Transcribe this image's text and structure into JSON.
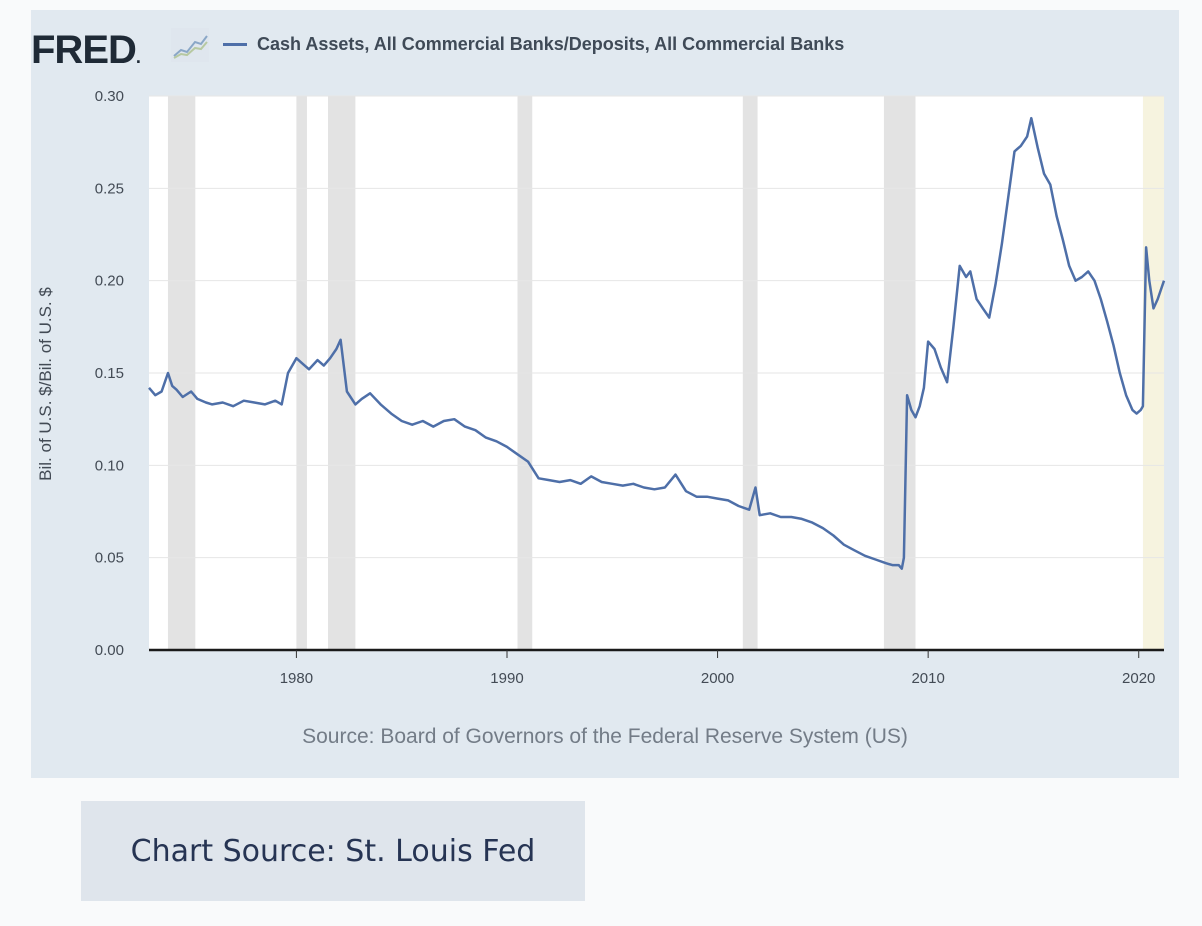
{
  "header": {
    "logo_text": "FRED",
    "logo_suffix": ".",
    "legend_label": "Cash Assets, All Commercial Banks/Deposits, All Commercial Banks"
  },
  "source_note": "Source: Board of Governors of the Federal Reserve System (US)",
  "caption": "Chart Source: St. Louis Fed",
  "colors": {
    "line": "#4e6fa8",
    "recession": "#e3e3e3",
    "highlight": "#f6f3df",
    "card": "#e1e9f0",
    "caption_bg": "#dfe5ec"
  },
  "chart_data": {
    "type": "line",
    "title": "",
    "xlabel": "",
    "ylabel": "Bil. of U.S. $/Bil. of U.S. $",
    "xlim": [
      1973.0,
      2021.2
    ],
    "ylim": [
      0.0,
      0.3
    ],
    "x_ticks": [
      1980,
      1990,
      2000,
      2010,
      2020
    ],
    "y_ticks": [
      "0.00",
      "0.05",
      "0.10",
      "0.15",
      "0.20",
      "0.25",
      "0.30"
    ],
    "grid": true,
    "legend_position": "top-left",
    "recession_bands": [
      [
        1973.9,
        1975.2
      ],
      [
        1980.0,
        1980.5
      ],
      [
        1981.5,
        1982.8
      ],
      [
        1990.5,
        1991.2
      ],
      [
        2001.2,
        2001.9
      ],
      [
        2007.9,
        2009.4
      ]
    ],
    "highlight_band": [
      2020.2,
      2021.2
    ],
    "series": [
      {
        "name": "Cash Assets, All Commercial Banks/Deposits, All Commercial Banks",
        "x": [
          1973.0,
          1973.3,
          1973.6,
          1973.9,
          1974.1,
          1974.3,
          1974.6,
          1975.0,
          1975.3,
          1975.7,
          1976.0,
          1976.5,
          1977.0,
          1977.5,
          1978.0,
          1978.5,
          1979.0,
          1979.3,
          1979.6,
          1980.0,
          1980.3,
          1980.6,
          1981.0,
          1981.3,
          1981.6,
          1981.9,
          1982.1,
          1982.4,
          1982.8,
          1983.1,
          1983.5,
          1984.0,
          1984.5,
          1985.0,
          1985.5,
          1986.0,
          1986.5,
          1987.0,
          1987.5,
          1988.0,
          1988.5,
          1989.0,
          1989.5,
          1990.0,
          1990.5,
          1991.0,
          1991.5,
          1992.0,
          1992.5,
          1993.0,
          1993.5,
          1994.0,
          1994.5,
          1995.0,
          1995.5,
          1996.0,
          1996.5,
          1997.0,
          1997.5,
          1998.0,
          1998.5,
          1999.0,
          1999.5,
          2000.0,
          2000.5,
          2001.0,
          2001.5,
          2001.8,
          2002.0,
          2002.5,
          2003.0,
          2003.5,
          2004.0,
          2004.5,
          2005.0,
          2005.5,
          2006.0,
          2006.5,
          2007.0,
          2007.5,
          2008.0,
          2008.3,
          2008.6,
          2008.75,
          2008.85,
          2009.0,
          2009.2,
          2009.4,
          2009.6,
          2009.8,
          2010.0,
          2010.3,
          2010.6,
          2010.9,
          2011.2,
          2011.5,
          2011.8,
          2012.0,
          2012.3,
          2012.6,
          2012.9,
          2013.2,
          2013.5,
          2013.8,
          2014.1,
          2014.4,
          2014.7,
          2014.9,
          2015.2,
          2015.5,
          2015.8,
          2016.1,
          2016.4,
          2016.7,
          2017.0,
          2017.3,
          2017.6,
          2017.9,
          2018.2,
          2018.5,
          2018.8,
          2019.1,
          2019.4,
          2019.7,
          2019.9,
          2020.1,
          2020.2,
          2020.35,
          2020.5,
          2020.7,
          2020.9,
          2021.2
        ],
        "y": [
          0.142,
          0.138,
          0.14,
          0.15,
          0.143,
          0.141,
          0.137,
          0.14,
          0.136,
          0.134,
          0.133,
          0.134,
          0.132,
          0.135,
          0.134,
          0.133,
          0.135,
          0.133,
          0.15,
          0.158,
          0.155,
          0.152,
          0.157,
          0.154,
          0.158,
          0.163,
          0.168,
          0.14,
          0.133,
          0.136,
          0.139,
          0.133,
          0.128,
          0.124,
          0.122,
          0.124,
          0.121,
          0.124,
          0.125,
          0.121,
          0.119,
          0.115,
          0.113,
          0.11,
          0.106,
          0.102,
          0.093,
          0.092,
          0.091,
          0.092,
          0.09,
          0.094,
          0.091,
          0.09,
          0.089,
          0.09,
          0.088,
          0.087,
          0.088,
          0.095,
          0.086,
          0.083,
          0.083,
          0.082,
          0.081,
          0.078,
          0.076,
          0.088,
          0.073,
          0.074,
          0.072,
          0.072,
          0.071,
          0.069,
          0.066,
          0.062,
          0.057,
          0.054,
          0.051,
          0.049,
          0.047,
          0.046,
          0.046,
          0.044,
          0.05,
          0.138,
          0.13,
          0.126,
          0.132,
          0.142,
          0.167,
          0.163,
          0.153,
          0.145,
          0.175,
          0.208,
          0.202,
          0.205,
          0.19,
          0.185,
          0.18,
          0.198,
          0.22,
          0.245,
          0.27,
          0.273,
          0.278,
          0.288,
          0.272,
          0.258,
          0.252,
          0.235,
          0.222,
          0.208,
          0.2,
          0.202,
          0.205,
          0.2,
          0.19,
          0.178,
          0.165,
          0.15,
          0.138,
          0.13,
          0.128,
          0.13,
          0.132,
          0.218,
          0.2,
          0.185,
          0.19,
          0.2
        ]
      }
    ]
  }
}
